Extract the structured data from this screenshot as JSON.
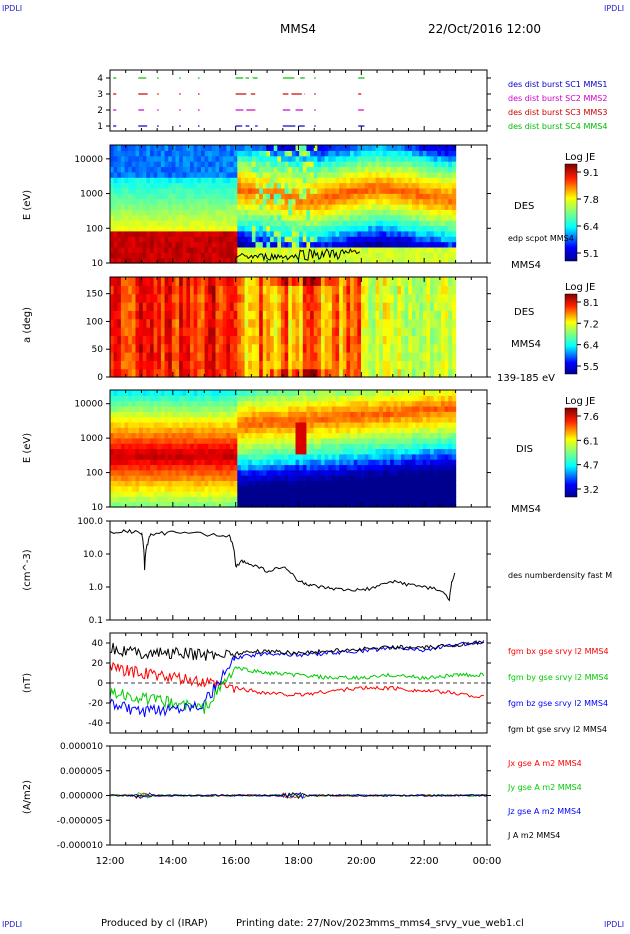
{
  "header": {
    "corner_left": "IPDLI",
    "corner_right": "IPDLI",
    "corner_bottom_left": "IPDLI",
    "corner_bottom_right": "IPDLI",
    "spacecraft": "MMS4",
    "datetime": "22/Oct/2016 12:00"
  },
  "footer": {
    "produced": "Produced by cl (IRAP)",
    "printing": "Printing date: 27/Nov/2023",
    "script": "mms_mms4_srvy_vue_web1.cl"
  },
  "chart_data": [
    {
      "type": "line",
      "panel": "burst",
      "y_ticks": [
        "1",
        "2",
        "3",
        "4"
      ],
      "legend": [
        {
          "name": "des dist burst SC1 MMS1",
          "color": "#0000cc"
        },
        {
          "name": "des dist burst SC2 MMS2",
          "color": "#cc00cc"
        },
        {
          "name": "des dist burst SC3 MMS3",
          "color": "#cc0000"
        },
        {
          "name": "des dist burst SC4 MMS4",
          "color": "#00bb00"
        }
      ],
      "segments_hours": [
        [
          12.1,
          12.2
        ],
        [
          12.9,
          13.2
        ],
        [
          13.5,
          13.55
        ],
        [
          14.2,
          14.25
        ],
        [
          14.8,
          14.85
        ],
        [
          16.0,
          16.7
        ],
        [
          17.5,
          18.2
        ],
        [
          18.5,
          18.55
        ],
        [
          19.9,
          20.1
        ]
      ]
    },
    {
      "type": "heatmap",
      "panel": "des-energy",
      "ylabel": "E (eV)",
      "y_ticks": [
        "10",
        "100",
        "1000",
        "10000"
      ],
      "ylim": [
        10,
        25000
      ],
      "scale": "log",
      "cb_title": "Log JE",
      "cb_ticks": [
        "9.1",
        "7.8",
        "6.4",
        "5.1"
      ],
      "right_label": "DES",
      "overlay_label": "edp scpot MMS4",
      "bottom_label": "MMS4",
      "profile": [
        {
          "t": 12.0,
          "peak_logE": 1.6,
          "high_logE": 3.6
        },
        {
          "t": 16.0,
          "peak_logE": 1.6,
          "high_logE": 3.6
        },
        {
          "t": 16.1,
          "peak_logE": 2.9,
          "high_logE": 2.9
        },
        {
          "t": 19.0,
          "peak_logE": 3.1,
          "high_logE": 3.1
        },
        {
          "t": 22.5,
          "peak_logE": 3.3,
          "high_logE": 3.3
        },
        {
          "t": 23.0,
          "peak_logE": 3.0,
          "high_logE": 3.0
        }
      ]
    },
    {
      "type": "heatmap",
      "panel": "des-pitch",
      "ylabel": "a (deg)",
      "y_ticks": [
        "0",
        "50",
        "100",
        "150"
      ],
      "ylim": [
        0,
        180
      ],
      "cb_title": "Log JE",
      "cb_ticks": [
        "8.1",
        "7.2",
        "6.4",
        "5.5"
      ],
      "right_label": "DES",
      "mid_label": "MMS4",
      "bottom_label": "139-185 eV"
    },
    {
      "type": "heatmap",
      "panel": "dis-energy",
      "ylabel": "E (eV)",
      "y_ticks": [
        "10",
        "100",
        "1000",
        "10000"
      ],
      "ylim": [
        10,
        25000
      ],
      "scale": "log",
      "cb_title": "Log JE",
      "cb_ticks": [
        "7.6",
        "6.1",
        "4.7",
        "3.2"
      ],
      "right_label": "DIS",
      "bottom_label": "MMS4"
    },
    {
      "type": "line",
      "panel": "density",
      "ylabel": "(cm^-3)",
      "y_ticks": [
        "0.1",
        "1.0",
        "10.0",
        "100.0"
      ],
      "ylim": [
        0.1,
        100
      ],
      "scale": "log",
      "series": [
        {
          "name": "des numberdensity fast M",
          "color": "#000000",
          "x": [
            12.0,
            12.5,
            13.0,
            13.1,
            13.3,
            14.0,
            15.0,
            15.8,
            16.0,
            16.2,
            16.5,
            17.0,
            17.5,
            18.0,
            18.3,
            18.6,
            19.0,
            19.5,
            20.0,
            20.5,
            21.0,
            21.5,
            22.0,
            22.5,
            22.8,
            23.0
          ],
          "y": [
            45,
            50,
            45,
            3,
            40,
            45,
            40,
            35,
            4,
            6,
            5,
            3,
            4,
            1.5,
            1.2,
            1.0,
            0.9,
            0.8,
            0.8,
            1.0,
            1.5,
            1.2,
            1.0,
            0.8,
            0.4,
            3
          ]
        }
      ]
    },
    {
      "type": "line",
      "panel": "magnetic",
      "ylabel": "(nT)",
      "y_ticks": [
        "-40",
        "-20",
        "0",
        "20",
        "40"
      ],
      "ylim": [
        -50,
        50
      ],
      "series": [
        {
          "name": "fgm bx gse srvy l2 MMS4",
          "color": "#ff0000",
          "x": [
            12,
            13,
            14,
            15,
            16,
            17,
            18,
            19,
            20,
            21,
            22,
            23,
            24
          ],
          "y": [
            15,
            10,
            5,
            0,
            -5,
            -10,
            -12,
            -8,
            -5,
            -5,
            -8,
            -10,
            -15
          ]
        },
        {
          "name": "fgm by gse srvy l2 MMS4",
          "color": "#00cc00",
          "x": [
            12,
            13,
            14,
            15,
            16,
            17,
            18,
            19,
            20,
            21,
            22,
            23,
            24
          ],
          "y": [
            -10,
            -15,
            -20,
            -25,
            15,
            10,
            8,
            5,
            5,
            8,
            5,
            8,
            8
          ]
        },
        {
          "name": "fgm bz gse srvy l2 MMS4",
          "color": "#0000ff",
          "x": [
            12,
            13,
            14,
            15,
            16,
            17,
            18,
            19,
            20,
            21,
            22,
            23,
            24
          ],
          "y": [
            -20,
            -30,
            -25,
            -20,
            25,
            30,
            28,
            30,
            32,
            35,
            33,
            38,
            42
          ]
        },
        {
          "name": "fgm bt gse srvy l2 MMS4",
          "color": "#000000",
          "x": [
            12,
            13,
            14,
            15,
            16,
            17,
            18,
            19,
            20,
            21,
            22,
            23,
            24
          ],
          "y": [
            35,
            30,
            30,
            28,
            30,
            32,
            30,
            32,
            34,
            36,
            35,
            38,
            42
          ]
        }
      ]
    },
    {
      "type": "line",
      "panel": "current",
      "ylabel": "(A/m2)",
      "y_ticks": [
        "-0.000010",
        "-0.000005",
        "0.000000",
        "0.000005",
        "0.000010"
      ],
      "ylim": [
        -1e-05,
        1e-05
      ],
      "series": [
        {
          "name": "Jx gse A m2 MMS4",
          "color": "#ff0000"
        },
        {
          "name": "Jy gse A m2 MMS4",
          "color": "#00cc00"
        },
        {
          "name": "Jz gse A m2 MMS4",
          "color": "#0000ff"
        },
        {
          "name": "J A m2 MMS4",
          "color": "#000000"
        }
      ]
    }
  ],
  "x_axis": {
    "ticks": [
      "12:00",
      "14:00",
      "16:00",
      "18:00",
      "20:00",
      "22:00",
      "00:00"
    ],
    "range_hours": [
      12,
      24
    ]
  },
  "colors": {
    "jet": [
      "#00008f",
      "#0000ff",
      "#00ffff",
      "#80ff80",
      "#ffff00",
      "#ff8000",
      "#ff0000",
      "#800000"
    ]
  }
}
